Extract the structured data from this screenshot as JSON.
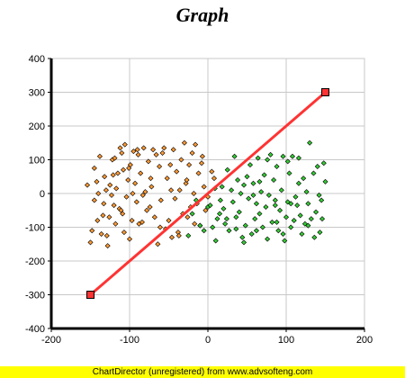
{
  "title": "Graph",
  "footer": "ChartDirector (unregistered) from www.advsofteng.com",
  "colors": {
    "plot_bg": "#ffffff",
    "grid": "#c8c8c8",
    "orange_points": "#ff9933",
    "green_points": "#33cc33",
    "trend_line": "#ff3333",
    "trend_markers": "#ff3333",
    "footer_bg": "#ffff00"
  },
  "chart_data": {
    "type": "scatter",
    "title": "Graph",
    "xlabel": "",
    "ylabel": "",
    "xlim": [
      -200,
      200
    ],
    "ylim": [
      -400,
      400
    ],
    "x_ticks": [
      -200,
      -100,
      0,
      100,
      200
    ],
    "y_ticks": [
      -400,
      -300,
      -200,
      -100,
      0,
      100,
      200,
      300,
      400
    ],
    "grid": true,
    "series": [
      {
        "color": "orange",
        "marker": "diamond",
        "points": [
          [
            -150,
            -145
          ],
          [
            -148,
            -110
          ],
          [
            -145,
            -20
          ],
          [
            -142,
            35
          ],
          [
            -140,
            0
          ],
          [
            -138,
            110
          ],
          [
            -136,
            -120
          ],
          [
            -134,
            -65
          ],
          [
            -132,
            50
          ],
          [
            -130,
            10
          ],
          [
            -128,
            -155
          ],
          [
            -126,
            -70
          ],
          [
            -125,
            25
          ],
          [
            -123,
            -5
          ],
          [
            -122,
            100
          ],
          [
            -120,
            -35
          ],
          [
            -118,
            -90
          ],
          [
            -117,
            15
          ],
          [
            -115,
            60
          ],
          [
            -113,
            -45
          ],
          [
            -112,
            135
          ],
          [
            -110,
            120
          ],
          [
            -109,
            -60
          ],
          [
            -108,
            70
          ],
          [
            -106,
            145
          ],
          [
            -104,
            -10
          ],
          [
            -102,
            40
          ],
          [
            -100,
            -135
          ],
          [
            -99,
            85
          ],
          [
            -97,
            -80
          ],
          [
            -95,
            125
          ],
          [
            -93,
            30
          ],
          [
            -91,
            -25
          ],
          [
            -90,
            130
          ],
          [
            -88,
            -90
          ],
          [
            -86,
            60
          ],
          [
            -84,
            -85
          ],
          [
            -82,
            135
          ],
          [
            -80,
            5
          ],
          [
            -78,
            -50
          ],
          [
            -76,
            95
          ],
          [
            -74,
            -40
          ],
          [
            -72,
            20
          ],
          [
            -70,
            130
          ],
          [
            -68,
            -70
          ],
          [
            -66,
            115
          ],
          [
            -64,
            -150
          ],
          [
            -62,
            80
          ],
          [
            -60,
            -20
          ],
          [
            -58,
            120
          ],
          [
            -56,
            135
          ],
          [
            -54,
            -105
          ],
          [
            -52,
            45
          ],
          [
            -50,
            -80
          ],
          [
            -48,
            85
          ],
          [
            -46,
            -130
          ],
          [
            -44,
            130
          ],
          [
            -42,
            -15
          ],
          [
            -40,
            65
          ],
          [
            -38,
            -115
          ],
          [
            -36,
            10
          ],
          [
            -34,
            100
          ],
          [
            -32,
            -60
          ],
          [
            -30,
            150
          ],
          [
            -28,
            30
          ],
          [
            -26,
            -70
          ],
          [
            -24,
            85
          ],
          [
            -22,
            -40
          ],
          [
            -20,
            120
          ],
          [
            -18,
            0
          ],
          [
            -16,
            145
          ],
          [
            -14,
            -30
          ],
          [
            -12,
            60
          ],
          [
            -10,
            -95
          ],
          [
            -8,
            90
          ],
          [
            -5,
            20
          ],
          [
            -3,
            -50
          ],
          [
            0,
            -10
          ],
          [
            5,
            65
          ],
          [
            8,
            45
          ],
          [
            -145,
            75
          ],
          [
            -133,
            -30
          ],
          [
            -121,
            55
          ],
          [
            -107,
            -115
          ],
          [
            -96,
            0
          ],
          [
            -83,
            -5
          ],
          [
            -73,
            45
          ],
          [
            -61,
            -100
          ],
          [
            -47,
            10
          ],
          [
            -37,
            -125
          ],
          [
            -27,
            40
          ],
          [
            -17,
            -90
          ],
          [
            -7,
            110
          ],
          [
            -154,
            25
          ],
          [
            -141,
            -80
          ],
          [
            -129,
            -125
          ],
          [
            -119,
            105
          ],
          [
            -111,
            -50
          ],
          [
            -101,
            75
          ],
          [
            -89,
            115
          ]
        ]
      },
      {
        "color": "green",
        "marker": "diamond",
        "points": [
          [
            -25,
            -125
          ],
          [
            -20,
            -60
          ],
          [
            -15,
            -20
          ],
          [
            -10,
            -95
          ],
          [
            -5,
            -110
          ],
          [
            0,
            -40
          ],
          [
            3,
            -35
          ],
          [
            6,
            -100
          ],
          [
            9,
            15
          ],
          [
            12,
            -75
          ],
          [
            15,
            -60
          ],
          [
            18,
            20
          ],
          [
            20,
            -45
          ],
          [
            22,
            -90
          ],
          [
            25,
            70
          ],
          [
            27,
            -110
          ],
          [
            30,
            10
          ],
          [
            32,
            -25
          ],
          [
            34,
            110
          ],
          [
            36,
            -70
          ],
          [
            38,
            40
          ],
          [
            40,
            -55
          ],
          [
            42,
            0
          ],
          [
            44,
            -130
          ],
          [
            46,
            25
          ],
          [
            48,
            -95
          ],
          [
            50,
            50
          ],
          [
            52,
            -15
          ],
          [
            54,
            85
          ],
          [
            56,
            -120
          ],
          [
            58,
            30
          ],
          [
            60,
            -75
          ],
          [
            62,
            -30
          ],
          [
            64,
            105
          ],
          [
            66,
            -60
          ],
          [
            68,
            5
          ],
          [
            70,
            -100
          ],
          [
            72,
            55
          ],
          [
            74,
            -40
          ],
          [
            76,
            -135
          ],
          [
            78,
            -5
          ],
          [
            80,
            115
          ],
          [
            82,
            -85
          ],
          [
            84,
            40
          ],
          [
            86,
            -20
          ],
          [
            88,
            80
          ],
          [
            90,
            -110
          ],
          [
            92,
            -50
          ],
          [
            94,
            10
          ],
          [
            96,
            110
          ],
          [
            98,
            -140
          ],
          [
            100,
            -70
          ],
          [
            102,
            -25
          ],
          [
            104,
            60
          ],
          [
            106,
            -100
          ],
          [
            108,
            110
          ],
          [
            110,
            -80
          ],
          [
            112,
            -10
          ],
          [
            114,
            -35
          ],
          [
            116,
            30
          ],
          [
            118,
            -65
          ],
          [
            120,
            -120
          ],
          [
            122,
            45
          ],
          [
            124,
            -90
          ],
          [
            126,
            5
          ],
          [
            128,
            -30
          ],
          [
            130,
            150
          ],
          [
            132,
            -75
          ],
          [
            135,
            60
          ],
          [
            138,
            -55
          ],
          [
            140,
            80
          ],
          [
            143,
            -115
          ],
          [
            145,
            -20
          ],
          [
            148,
            90
          ],
          [
            150,
            35
          ],
          [
            10,
            -140
          ],
          [
            24,
            -75
          ],
          [
            46,
            -145
          ],
          [
            66,
            35
          ],
          [
            88,
            -85
          ],
          [
            102,
            95
          ],
          [
            128,
            -95
          ],
          [
            142,
            -5
          ],
          [
            58,
            -5
          ],
          [
            16,
            -20
          ],
          [
            36,
            -105
          ],
          [
            76,
            100
          ],
          [
            96,
            -120
          ],
          [
            116,
            105
          ],
          [
            136,
            -130
          ],
          [
            62,
            -110
          ],
          [
            86,
            -35
          ],
          [
            106,
            -30
          ],
          [
            146,
            -75
          ]
        ]
      },
      {
        "type": "line",
        "color": "red",
        "marker": "square",
        "points": [
          [
            -150,
            -300
          ],
          [
            150,
            300
          ]
        ]
      }
    ]
  }
}
